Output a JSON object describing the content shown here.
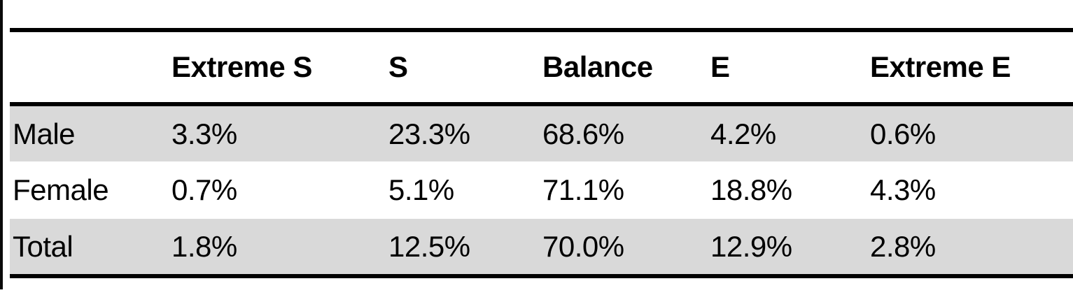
{
  "table": {
    "header": {
      "label_col": "",
      "col1": "Extreme S",
      "col2": "S",
      "col3": "Balance",
      "col4": "E",
      "col5": "Extreme E"
    },
    "rows": [
      {
        "label": "Male",
        "values": [
          "3.3%",
          "23.3%",
          "68.6%",
          "4.2%",
          "0.6%"
        ]
      },
      {
        "label": "Female",
        "values": [
          "0.7%",
          "5.1%",
          "71.1%",
          "18.8%",
          "4.3%"
        ]
      },
      {
        "label": "Total",
        "values": [
          "1.8%",
          "12.5%",
          "70.0%",
          "12.9%",
          "2.8%"
        ]
      }
    ]
  },
  "colors": {
    "row_shading": "#d9d9d9",
    "rule": "#000000",
    "background": "#ffffff",
    "text": "#000000"
  },
  "chart_data": {
    "type": "table",
    "columns": [
      "Extreme S",
      "S",
      "Balance",
      "E",
      "Extreme E"
    ],
    "row_labels": [
      "Male",
      "Female",
      "Total"
    ],
    "series": [
      {
        "name": "Male",
        "values_pct": [
          3.3,
          23.3,
          68.6,
          4.2,
          0.6
        ]
      },
      {
        "name": "Female",
        "values_pct": [
          0.7,
          5.1,
          71.1,
          18.8,
          4.3
        ]
      },
      {
        "name": "Total",
        "values_pct": [
          1.8,
          12.5,
          70.0,
          12.9,
          2.8
        ]
      }
    ],
    "title": "",
    "notes": "Row shading on Male and Total rows; thick black rules above header, below header, and below last row"
  }
}
